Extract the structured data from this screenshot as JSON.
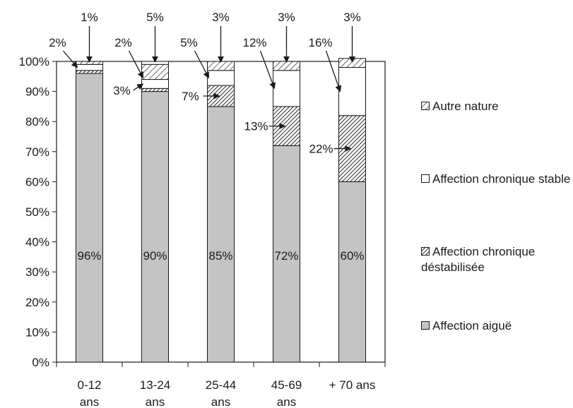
{
  "chart_data": {
    "type": "bar",
    "stacked": true,
    "categories": [
      [
        "0-12",
        "ans"
      ],
      [
        "13-24",
        "ans"
      ],
      [
        "25-44",
        "ans"
      ],
      [
        "45-69",
        "ans"
      ],
      [
        "+ 70 ans"
      ]
    ],
    "series": [
      {
        "name": "Affection aiguë",
        "values": [
          96,
          90,
          85,
          72,
          60
        ],
        "labels": [
          "96%",
          "90%",
          "85%",
          "72%",
          "60%"
        ]
      },
      {
        "name": "Affection chronique déstabilisée",
        "values": [
          1,
          1,
          7,
          13,
          22
        ],
        "labels": [
          "",
          "",
          "7%",
          "13%",
          "22%"
        ]
      },
      {
        "name": "Affection chronique stable",
        "values": [
          2,
          3,
          5,
          12,
          16
        ],
        "labels": [
          "2%",
          "3%",
          "5%",
          "12%",
          "16%"
        ]
      },
      {
        "name": "Autre nature",
        "values": [
          1,
          5,
          3,
          3,
          3
        ],
        "labels": [
          "1%",
          "5%",
          "3%",
          "3%",
          "3%"
        ]
      }
    ],
    "extra_labels": [
      {
        "category": 1,
        "text": "2%"
      }
    ],
    "ylim": [
      0,
      100
    ],
    "yticks": [
      "0%",
      "10%",
      "20%",
      "30%",
      "40%",
      "50%",
      "60%",
      "70%",
      "80%",
      "90%",
      "100%"
    ],
    "legend_position": "right",
    "colors": {
      "aigue": "#c4c4c4",
      "hatch": "#3a3a3a",
      "stable": "#ffffff",
      "outline": "#1a1a1a"
    }
  }
}
